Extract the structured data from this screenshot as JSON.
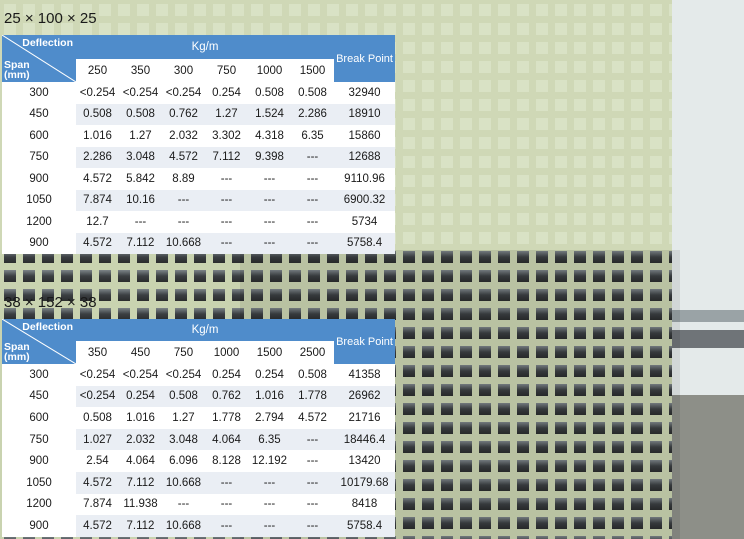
{
  "table1": {
    "title": "25 × 100 × 25",
    "corner_top": "Deflection",
    "corner_bottom_1": "Span",
    "corner_bottom_2": "(mm)",
    "group_header": "Kg/m",
    "break_header": "Break Point",
    "columns": [
      "250",
      "350",
      "300",
      "750",
      "1000",
      "1500"
    ],
    "rows": [
      {
        "span": "300",
        "values": [
          "<0.254",
          "<0.254",
          "<0.254",
          "0.254",
          "0.508",
          "0.508"
        ],
        "break": "32940"
      },
      {
        "span": "450",
        "values": [
          "0.508",
          "0.508",
          "0.762",
          "1.27",
          "1.524",
          "2.286"
        ],
        "break": "18910"
      },
      {
        "span": "600",
        "values": [
          "1.016",
          "1.27",
          "2.032",
          "3.302",
          "4.318",
          "6.35"
        ],
        "break": "15860"
      },
      {
        "span": "750",
        "values": [
          "2.286",
          "3.048",
          "4.572",
          "7.112",
          "9.398",
          "---"
        ],
        "break": "12688"
      },
      {
        "span": "900",
        "values": [
          "4.572",
          "5.842",
          "8.89",
          "---",
          "---",
          "---"
        ],
        "break": "9110.96"
      },
      {
        "span": "1050",
        "values": [
          "7.874",
          "10.16",
          "---",
          "---",
          "---",
          "---"
        ],
        "break": "6900.32"
      },
      {
        "span": "1200",
        "values": [
          "12.7",
          "---",
          "---",
          "---",
          "---",
          "---"
        ],
        "break": "5734"
      },
      {
        "span": "900",
        "values": [
          "4.572",
          "7.112",
          "10.668",
          "---",
          "---",
          "---"
        ],
        "break": "5758.4"
      }
    ]
  },
  "table2": {
    "title": "38 × 152 × 38",
    "corner_top": "Deflection",
    "corner_bottom_1": "Span",
    "corner_bottom_2": "(mm)",
    "group_header": "Kg/m",
    "break_header": "Break Point",
    "columns": [
      "350",
      "450",
      "750",
      "1000",
      "1500",
      "2500"
    ],
    "rows": [
      {
        "span": "300",
        "values": [
          "<0.254",
          "<0.254",
          "<0.254",
          "0.254",
          "0.254",
          "0.508"
        ],
        "break": "41358"
      },
      {
        "span": "450",
        "values": [
          "<0.254",
          "0.254",
          "0.508",
          "0.762",
          "1.016",
          "1.778"
        ],
        "break": "26962"
      },
      {
        "span": "600",
        "values": [
          "0.508",
          "1.016",
          "1.27",
          "1.778",
          "2.794",
          "4.572"
        ],
        "break": "21716"
      },
      {
        "span": "750",
        "values": [
          "1.027",
          "2.032",
          "3.048",
          "4.064",
          "6.35",
          "---"
        ],
        "break": "18446.4"
      },
      {
        "span": "900",
        "values": [
          "2.54",
          "4.064",
          "6.096",
          "8.128",
          "12.192",
          "---"
        ],
        "break": "13420"
      },
      {
        "span": "1050",
        "values": [
          "4.572",
          "7.112",
          "10.668",
          "---",
          "---",
          "---"
        ],
        "break": "10179.68"
      },
      {
        "span": "1200",
        "values": [
          "7.874",
          "11.938",
          "---",
          "---",
          "---",
          "---"
        ],
        "break": "8418"
      },
      {
        "span": "900",
        "values": [
          "4.572",
          "7.112",
          "10.668",
          "---",
          "---",
          "---"
        ],
        "break": "5758.4"
      }
    ]
  },
  "colors": {
    "header_blue": "#4f8ccb",
    "grating_green": "#cfd7b8",
    "row_alt": "#eaeef4"
  }
}
